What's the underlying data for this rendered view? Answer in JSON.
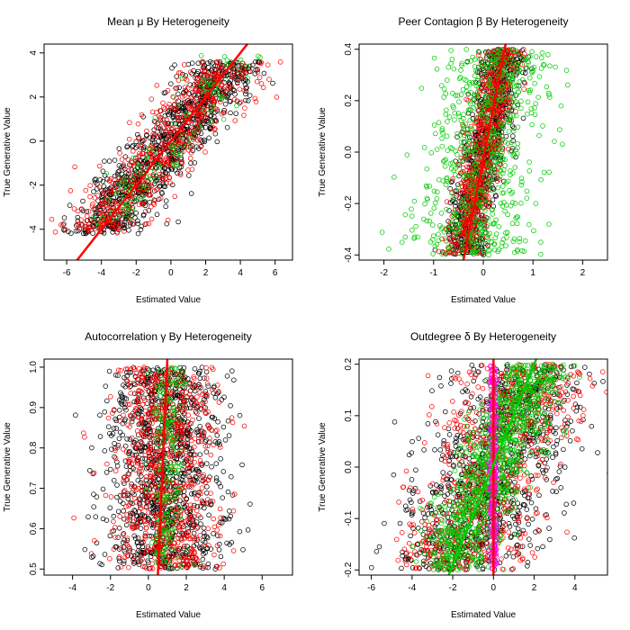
{
  "chart_data": [
    {
      "type": "scatter",
      "title": "Mean μ By Heterogeneity",
      "xlabel": "Estimated Value",
      "ylabel": "True Generative Value",
      "xlim": [
        -7.3,
        7.0
      ],
      "ylim": [
        -5.4,
        4.4
      ],
      "xticks": [
        -6,
        -4,
        -2,
        0,
        2,
        4,
        6
      ],
      "yticks": [
        -4,
        -2,
        0,
        2,
        4
      ],
      "series": [
        {
          "name": "black",
          "color": "#000000",
          "n": 950,
          "gen": {
            "mode": "corr",
            "ymin": -4.2,
            "ymax": 3.6,
            "slope": 1.0,
            "icpt": 0.0,
            "sd": 1.15,
            "seed": 11
          }
        },
        {
          "name": "red",
          "color": "#ff0000",
          "n": 520,
          "gen": {
            "mode": "corr",
            "ymin": -4.2,
            "ymax": 3.6,
            "slope": 1.0,
            "icpt": 0.0,
            "sd": 1.2,
            "seed": 23
          }
        },
        {
          "name": "green",
          "color": "#00cc00",
          "n": 110,
          "gen": {
            "mode": "corr",
            "ymin": -4.0,
            "ymax": 3.9,
            "slope": 1.0,
            "icpt": 0.0,
            "sd": 0.9,
            "seed": 37
          }
        }
      ],
      "lines": [
        {
          "color": "#ff0000",
          "from": [
            -5.4,
            -5.4
          ],
          "to": [
            4.4,
            4.4
          ],
          "width": 2.5
        }
      ]
    },
    {
      "type": "scatter",
      "title": "Peer Contagion β By Heterogeneity",
      "xlabel": "Estimated Value",
      "ylabel": "True Generative Value",
      "xlim": [
        -2.5,
        2.5
      ],
      "ylim": [
        -0.42,
        0.42
      ],
      "xticks": [
        -2,
        -1,
        0,
        1,
        2
      ],
      "yticks": [
        -0.4,
        -0.2,
        0.0,
        0.2,
        0.4
      ],
      "ytick_labels": [
        "-0.4",
        "-0.2",
        "0.0",
        "0.2",
        "0.4"
      ],
      "series": [
        {
          "name": "black",
          "color": "#000000",
          "n": 850,
          "gen": {
            "mode": "corr",
            "ymin": -0.4,
            "ymax": 0.4,
            "slope": 1.1,
            "icpt": 0.0,
            "sd": 0.22,
            "seed": 41
          }
        },
        {
          "name": "red",
          "color": "#ff0000",
          "n": 650,
          "gen": {
            "mode": "corr",
            "ymin": -0.4,
            "ymax": 0.4,
            "slope": 1.1,
            "icpt": 0.0,
            "sd": 0.2,
            "seed": 53
          }
        },
        {
          "name": "green",
          "color": "#00cc00",
          "n": 650,
          "gen": {
            "mode": "corr",
            "ymin": -0.4,
            "ymax": 0.4,
            "slope": 0.8,
            "icpt": 0.0,
            "sd": 0.55,
            "seed": 67
          }
        }
      ],
      "lines": [
        {
          "color": "#ff0000",
          "from": [
            -0.4,
            -0.42
          ],
          "to": [
            0.45,
            0.42
          ],
          "width": 2.5
        }
      ]
    },
    {
      "type": "scatter",
      "title": "Autocorrelation γ By Heterogeneity",
      "xlabel": "Estimated Value",
      "ylabel": "True Generative Value",
      "xlim": [
        -5.5,
        7.6
      ],
      "ylim": [
        0.485,
        1.02
      ],
      "xticks": [
        -4,
        -2,
        0,
        2,
        4,
        6
      ],
      "yticks": [
        0.5,
        0.6,
        0.7,
        0.8,
        0.9,
        1.0
      ],
      "ytick_labels": [
        "0.5",
        "0.6",
        "0.7",
        "0.8",
        "0.9",
        "1.0"
      ],
      "series": [
        {
          "name": "black",
          "color": "#000000",
          "n": 1100,
          "gen": {
            "mode": "band",
            "ymin": 0.5,
            "ymax": 1.0,
            "xmean": 0.9,
            "sd": 1.5,
            "seed": 71
          }
        },
        {
          "name": "red",
          "color": "#ff0000",
          "n": 700,
          "gen": {
            "mode": "band",
            "ymin": 0.5,
            "ymax": 1.0,
            "xmean": 0.9,
            "sd": 1.45,
            "seed": 83
          }
        },
        {
          "name": "green",
          "color": "#00cc00",
          "n": 180,
          "gen": {
            "mode": "band",
            "ymin": 0.5,
            "ymax": 1.0,
            "xmean": 0.9,
            "sd": 0.5,
            "seed": 97
          }
        }
      ],
      "lines": [
        {
          "color": "#ff0000",
          "from": [
            0.5,
            0.485
          ],
          "to": [
            1.0,
            1.02
          ],
          "width": 2.5
        }
      ]
    },
    {
      "type": "scatter",
      "title": "Outdegree δ By Heterogeneity",
      "xlabel": "Estimated Value",
      "ylabel": "True Generative Value",
      "xlim": [
        -6.6,
        5.6
      ],
      "ylim": [
        -0.21,
        0.21
      ],
      "xticks": [
        -6,
        -4,
        -2,
        0,
        2,
        4
      ],
      "yticks": [
        -0.2,
        -0.1,
        0.0,
        0.1,
        0.2
      ],
      "ytick_labels": [
        "-0.2",
        "-0.1",
        "0.0",
        "0.1",
        "0.2"
      ],
      "series": [
        {
          "name": "black",
          "color": "#000000",
          "n": 1000,
          "gen": {
            "mode": "corr",
            "ymin": -0.2,
            "ymax": 0.2,
            "slope": 10,
            "icpt": 0.0,
            "sd": 1.7,
            "seed": 101
          }
        },
        {
          "name": "red",
          "color": "#ff0000",
          "n": 700,
          "gen": {
            "mode": "corr",
            "ymin": -0.2,
            "ymax": 0.2,
            "slope": 10,
            "icpt": 0.0,
            "sd": 1.7,
            "seed": 113
          }
        },
        {
          "name": "green",
          "color": "#00cc00",
          "n": 900,
          "gen": {
            "mode": "corr",
            "ymin": -0.2,
            "ymax": 0.2,
            "slope": 11,
            "icpt": 0.0,
            "sd": 0.9,
            "seed": 127
          }
        },
        {
          "name": "magenta",
          "color": "#ff00ff",
          "n": 260,
          "gen": {
            "mode": "band",
            "ymin": -0.2,
            "ymax": 0.2,
            "xmean": 0.0,
            "sd": 0.08,
            "seed": 131
          }
        }
      ],
      "lines": [
        {
          "color": "#ff0000",
          "from": [
            0.0,
            -0.21
          ],
          "to": [
            0.0,
            0.21
          ],
          "width": 2.5
        },
        {
          "color": "#00cc00",
          "from": [
            -2.2,
            -0.21
          ],
          "to": [
            2.1,
            0.21
          ],
          "width": 2.5
        }
      ]
    }
  ]
}
